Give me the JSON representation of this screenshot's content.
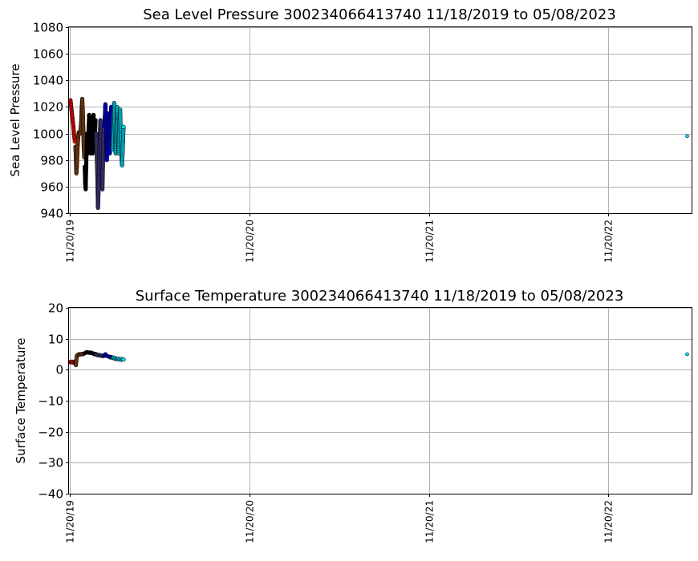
{
  "chart_data": [
    {
      "type": "scatter",
      "title": "Sea Level Pressure 300234066413740  11/18/2019 to 05/08/2023",
      "xlabel": "",
      "ylabel": "Sea Level Pressure",
      "ylim": [
        940,
        1080
      ],
      "yticks": [
        940,
        960,
        980,
        1000,
        1020,
        1040,
        1060,
        1080
      ],
      "xlim": [
        "2019-11-18",
        "2023-05-08"
      ],
      "xticks": [
        {
          "date": "2019-11-20",
          "label": "11/20/19"
        },
        {
          "date": "2020-11-20",
          "label": "11/20/20"
        },
        {
          "date": "2021-11-20",
          "label": "11/20/21"
        },
        {
          "date": "2022-11-20",
          "label": "11/20/22"
        }
      ],
      "grid": true,
      "series": [
        {
          "color": "#ff0000",
          "points": [
            [
              "2019-11-20",
              1024
            ],
            [
              "2019-11-21",
              1025
            ],
            [
              "2019-11-22",
              1022
            ],
            [
              "2019-11-23",
              1018
            ],
            [
              "2019-11-24",
              1015
            ],
            [
              "2019-11-25",
              1012
            ],
            [
              "2019-11-26",
              1008
            ],
            [
              "2019-11-27",
              1005
            ],
            [
              "2019-11-28",
              1000
            ],
            [
              "2019-11-29",
              997
            ],
            [
              "2019-11-30",
              994
            ]
          ]
        },
        {
          "color": "#8b4513",
          "points": [
            [
              "2019-12-01",
              990
            ],
            [
              "2019-12-02",
              982
            ],
            [
              "2019-12-03",
              970
            ],
            [
              "2019-12-04",
              975
            ],
            [
              "2019-12-05",
              985
            ],
            [
              "2019-12-06",
              993
            ],
            [
              "2019-12-07",
              998
            ],
            [
              "2019-12-08",
              1001
            ],
            [
              "2019-12-09",
              1000
            ],
            [
              "2019-12-10",
              1001
            ],
            [
              "2019-12-11",
              1000
            ],
            [
              "2019-12-13",
              1010
            ],
            [
              "2019-12-14",
              1020
            ],
            [
              "2019-12-15",
              1026
            ],
            [
              "2019-12-16",
              1018
            ],
            [
              "2019-12-17",
              1005
            ],
            [
              "2019-12-18",
              990
            ],
            [
              "2019-12-19",
              982
            ]
          ]
        },
        {
          "color": "#000000",
          "points": [
            [
              "2019-12-20",
              975
            ],
            [
              "2019-12-21",
              962
            ],
            [
              "2019-12-22",
              958
            ],
            [
              "2019-12-23",
              975
            ],
            [
              "2019-12-24",
              990
            ],
            [
              "2019-12-25",
              1000
            ],
            [
              "2019-12-26",
              985
            ],
            [
              "2019-12-27",
              995
            ],
            [
              "2019-12-28",
              1005
            ],
            [
              "2019-12-29",
              1014
            ],
            [
              "2019-12-30",
              1000
            ],
            [
              "2019-12-31",
              990
            ],
            [
              "2020-01-01",
              985
            ],
            [
              "2020-01-02",
              995
            ],
            [
              "2020-01-03",
              1012
            ],
            [
              "2020-01-04",
              1000
            ],
            [
              "2020-01-05",
              985
            ],
            [
              "2020-01-06",
              995
            ],
            [
              "2020-01-07",
              1014
            ],
            [
              "2020-01-08",
              1005
            ],
            [
              "2020-01-09",
              990
            ],
            [
              "2020-01-10",
              1000
            ],
            [
              "2020-01-11",
              1010
            ]
          ]
        },
        {
          "color": "#483d8b",
          "points": [
            [
              "2020-01-12",
              1000
            ],
            [
              "2020-01-13",
              990
            ],
            [
              "2020-01-14",
              978
            ],
            [
              "2020-01-15",
              965
            ],
            [
              "2020-01-16",
              944
            ],
            [
              "2020-01-17",
              955
            ],
            [
              "2020-01-18",
              970
            ],
            [
              "2020-01-19",
              985
            ],
            [
              "2020-01-20",
              1000
            ],
            [
              "2020-01-21",
              1010
            ],
            [
              "2020-01-22",
              995
            ],
            [
              "2020-01-23",
              980
            ],
            [
              "2020-01-24",
              965
            ],
            [
              "2020-01-25",
              958
            ],
            [
              "2020-01-26",
              975
            ],
            [
              "2020-01-27",
              995
            ],
            [
              "2020-01-28",
              1002
            ]
          ]
        },
        {
          "color": "#0000ff",
          "points": [
            [
              "2020-01-29",
              1005
            ],
            [
              "2020-01-30",
              1012
            ],
            [
              "2020-01-31",
              1022
            ],
            [
              "2020-02-01",
              1010
            ],
            [
              "2020-02-02",
              995
            ],
            [
              "2020-02-03",
              980
            ],
            [
              "2020-02-04",
              990
            ],
            [
              "2020-02-05",
              1002
            ],
            [
              "2020-02-06",
              1015
            ],
            [
              "2020-02-07",
              1008
            ],
            [
              "2020-02-08",
              992
            ],
            [
              "2020-02-09",
              985
            ],
            [
              "2020-02-10",
              998
            ],
            [
              "2020-02-11",
              1012
            ],
            [
              "2020-02-12",
              1020
            ],
            [
              "2020-02-13",
              1005
            ],
            [
              "2020-02-14",
              990
            ]
          ]
        },
        {
          "color": "#00e5ff",
          "points": [
            [
              "2020-02-15",
              988
            ],
            [
              "2020-02-16",
              1000
            ],
            [
              "2020-02-17",
              1015
            ],
            [
              "2020-02-18",
              1023
            ],
            [
              "2020-02-19",
              1010
            ],
            [
              "2020-02-20",
              995
            ],
            [
              "2020-02-21",
              985
            ],
            [
              "2020-02-22",
              998
            ],
            [
              "2020-02-23",
              1008
            ],
            [
              "2020-02-24",
              1020
            ],
            [
              "2020-02-25",
              1010
            ],
            [
              "2020-02-26",
              995
            ],
            [
              "2020-02-27",
              985
            ],
            [
              "2020-02-28",
              1000
            ],
            [
              "2020-02-29",
              1012
            ],
            [
              "2020-03-01",
              1018
            ],
            [
              "2020-03-02",
              1005
            ],
            [
              "2020-03-03",
              990
            ],
            [
              "2020-03-04",
              982
            ],
            [
              "2020-03-05",
              976
            ],
            [
              "2020-03-06",
              985
            ],
            [
              "2020-03-07",
              995
            ],
            [
              "2020-03-08",
              1005
            ]
          ]
        },
        {
          "color": "#00e5ff",
          "points": [
            [
              "2023-04-29",
              998
            ]
          ]
        }
      ]
    },
    {
      "type": "scatter",
      "title": "Surface Temperature 300234066413740  11/18/2019 to 05/08/2023",
      "xlabel": "",
      "ylabel": "Surface Temperature",
      "ylim": [
        -40,
        20
      ],
      "yticks": [
        -40,
        -30,
        -20,
        -10,
        0,
        10,
        20
      ],
      "xlim": [
        "2019-11-18",
        "2023-05-08"
      ],
      "xticks": [
        {
          "date": "2019-11-20",
          "label": "11/20/19"
        },
        {
          "date": "2020-11-20",
          "label": "11/20/20"
        },
        {
          "date": "2021-11-20",
          "label": "11/20/21"
        },
        {
          "date": "2022-11-20",
          "label": "11/20/22"
        }
      ],
      "grid": true,
      "series": [
        {
          "color": "#ff0000",
          "points": [
            [
              "2019-11-20",
              2.5
            ],
            [
              "2019-11-22",
              2.4
            ],
            [
              "2019-11-24",
              2.6
            ],
            [
              "2019-11-26",
              2.3
            ],
            [
              "2019-11-28",
              2.5
            ],
            [
              "2019-11-30",
              2.7
            ]
          ]
        },
        {
          "color": "#8b4513",
          "points": [
            [
              "2019-12-01",
              2.5
            ],
            [
              "2019-12-02",
              1.5
            ],
            [
              "2019-12-03",
              3.0
            ],
            [
              "2019-12-04",
              4.5
            ],
            [
              "2019-12-06",
              4.8
            ],
            [
              "2019-12-08",
              5.0
            ],
            [
              "2019-12-10",
              4.9
            ],
            [
              "2019-12-12",
              5.0
            ],
            [
              "2019-12-14",
              5.1
            ],
            [
              "2019-12-16",
              5.0
            ],
            [
              "2019-12-18",
              5.2
            ]
          ]
        },
        {
          "color": "#000000",
          "points": [
            [
              "2019-12-20",
              5.3
            ],
            [
              "2019-12-22",
              5.5
            ],
            [
              "2019-12-24",
              5.7
            ],
            [
              "2019-12-26",
              5.6
            ],
            [
              "2019-12-28",
              5.5
            ],
            [
              "2019-12-30",
              5.6
            ],
            [
              "2020-01-01",
              5.4
            ],
            [
              "2020-01-03",
              5.5
            ],
            [
              "2020-01-05",
              5.3
            ],
            [
              "2020-01-07",
              5.2
            ],
            [
              "2020-01-09",
              5.0
            ],
            [
              "2020-01-11",
              5.1
            ]
          ]
        },
        {
          "color": "#483d8b",
          "points": [
            [
              "2020-01-12",
              5.0
            ],
            [
              "2020-01-14",
              4.8
            ],
            [
              "2020-01-16",
              4.7
            ],
            [
              "2020-01-18",
              4.8
            ],
            [
              "2020-01-20",
              4.6
            ],
            [
              "2020-01-22",
              4.5
            ],
            [
              "2020-01-24",
              4.6
            ],
            [
              "2020-01-26",
              4.4
            ],
            [
              "2020-01-28",
              4.5
            ]
          ]
        },
        {
          "color": "#0000ff",
          "points": [
            [
              "2020-01-29",
              4.5
            ],
            [
              "2020-01-31",
              5.0
            ],
            [
              "2020-02-02",
              4.6
            ],
            [
              "2020-02-04",
              4.4
            ],
            [
              "2020-02-06",
              4.3
            ],
            [
              "2020-02-08",
              4.2
            ],
            [
              "2020-02-10",
              4.0
            ],
            [
              "2020-02-12",
              4.1
            ],
            [
              "2020-02-14",
              3.9
            ]
          ]
        },
        {
          "color": "#00e5ff",
          "points": [
            [
              "2020-02-15",
              3.8
            ],
            [
              "2020-02-17",
              3.9
            ],
            [
              "2020-02-19",
              3.6
            ],
            [
              "2020-02-21",
              3.7
            ],
            [
              "2020-02-23",
              3.5
            ],
            [
              "2020-02-25",
              3.4
            ],
            [
              "2020-02-27",
              3.6
            ],
            [
              "2020-02-29",
              3.3
            ],
            [
              "2020-03-02",
              3.5
            ],
            [
              "2020-03-04",
              3.2
            ],
            [
              "2020-03-06",
              3.4
            ],
            [
              "2020-03-08",
              3.3
            ]
          ]
        },
        {
          "color": "#00e5ff",
          "points": [
            [
              "2023-04-29",
              5.0
            ]
          ]
        }
      ]
    }
  ]
}
